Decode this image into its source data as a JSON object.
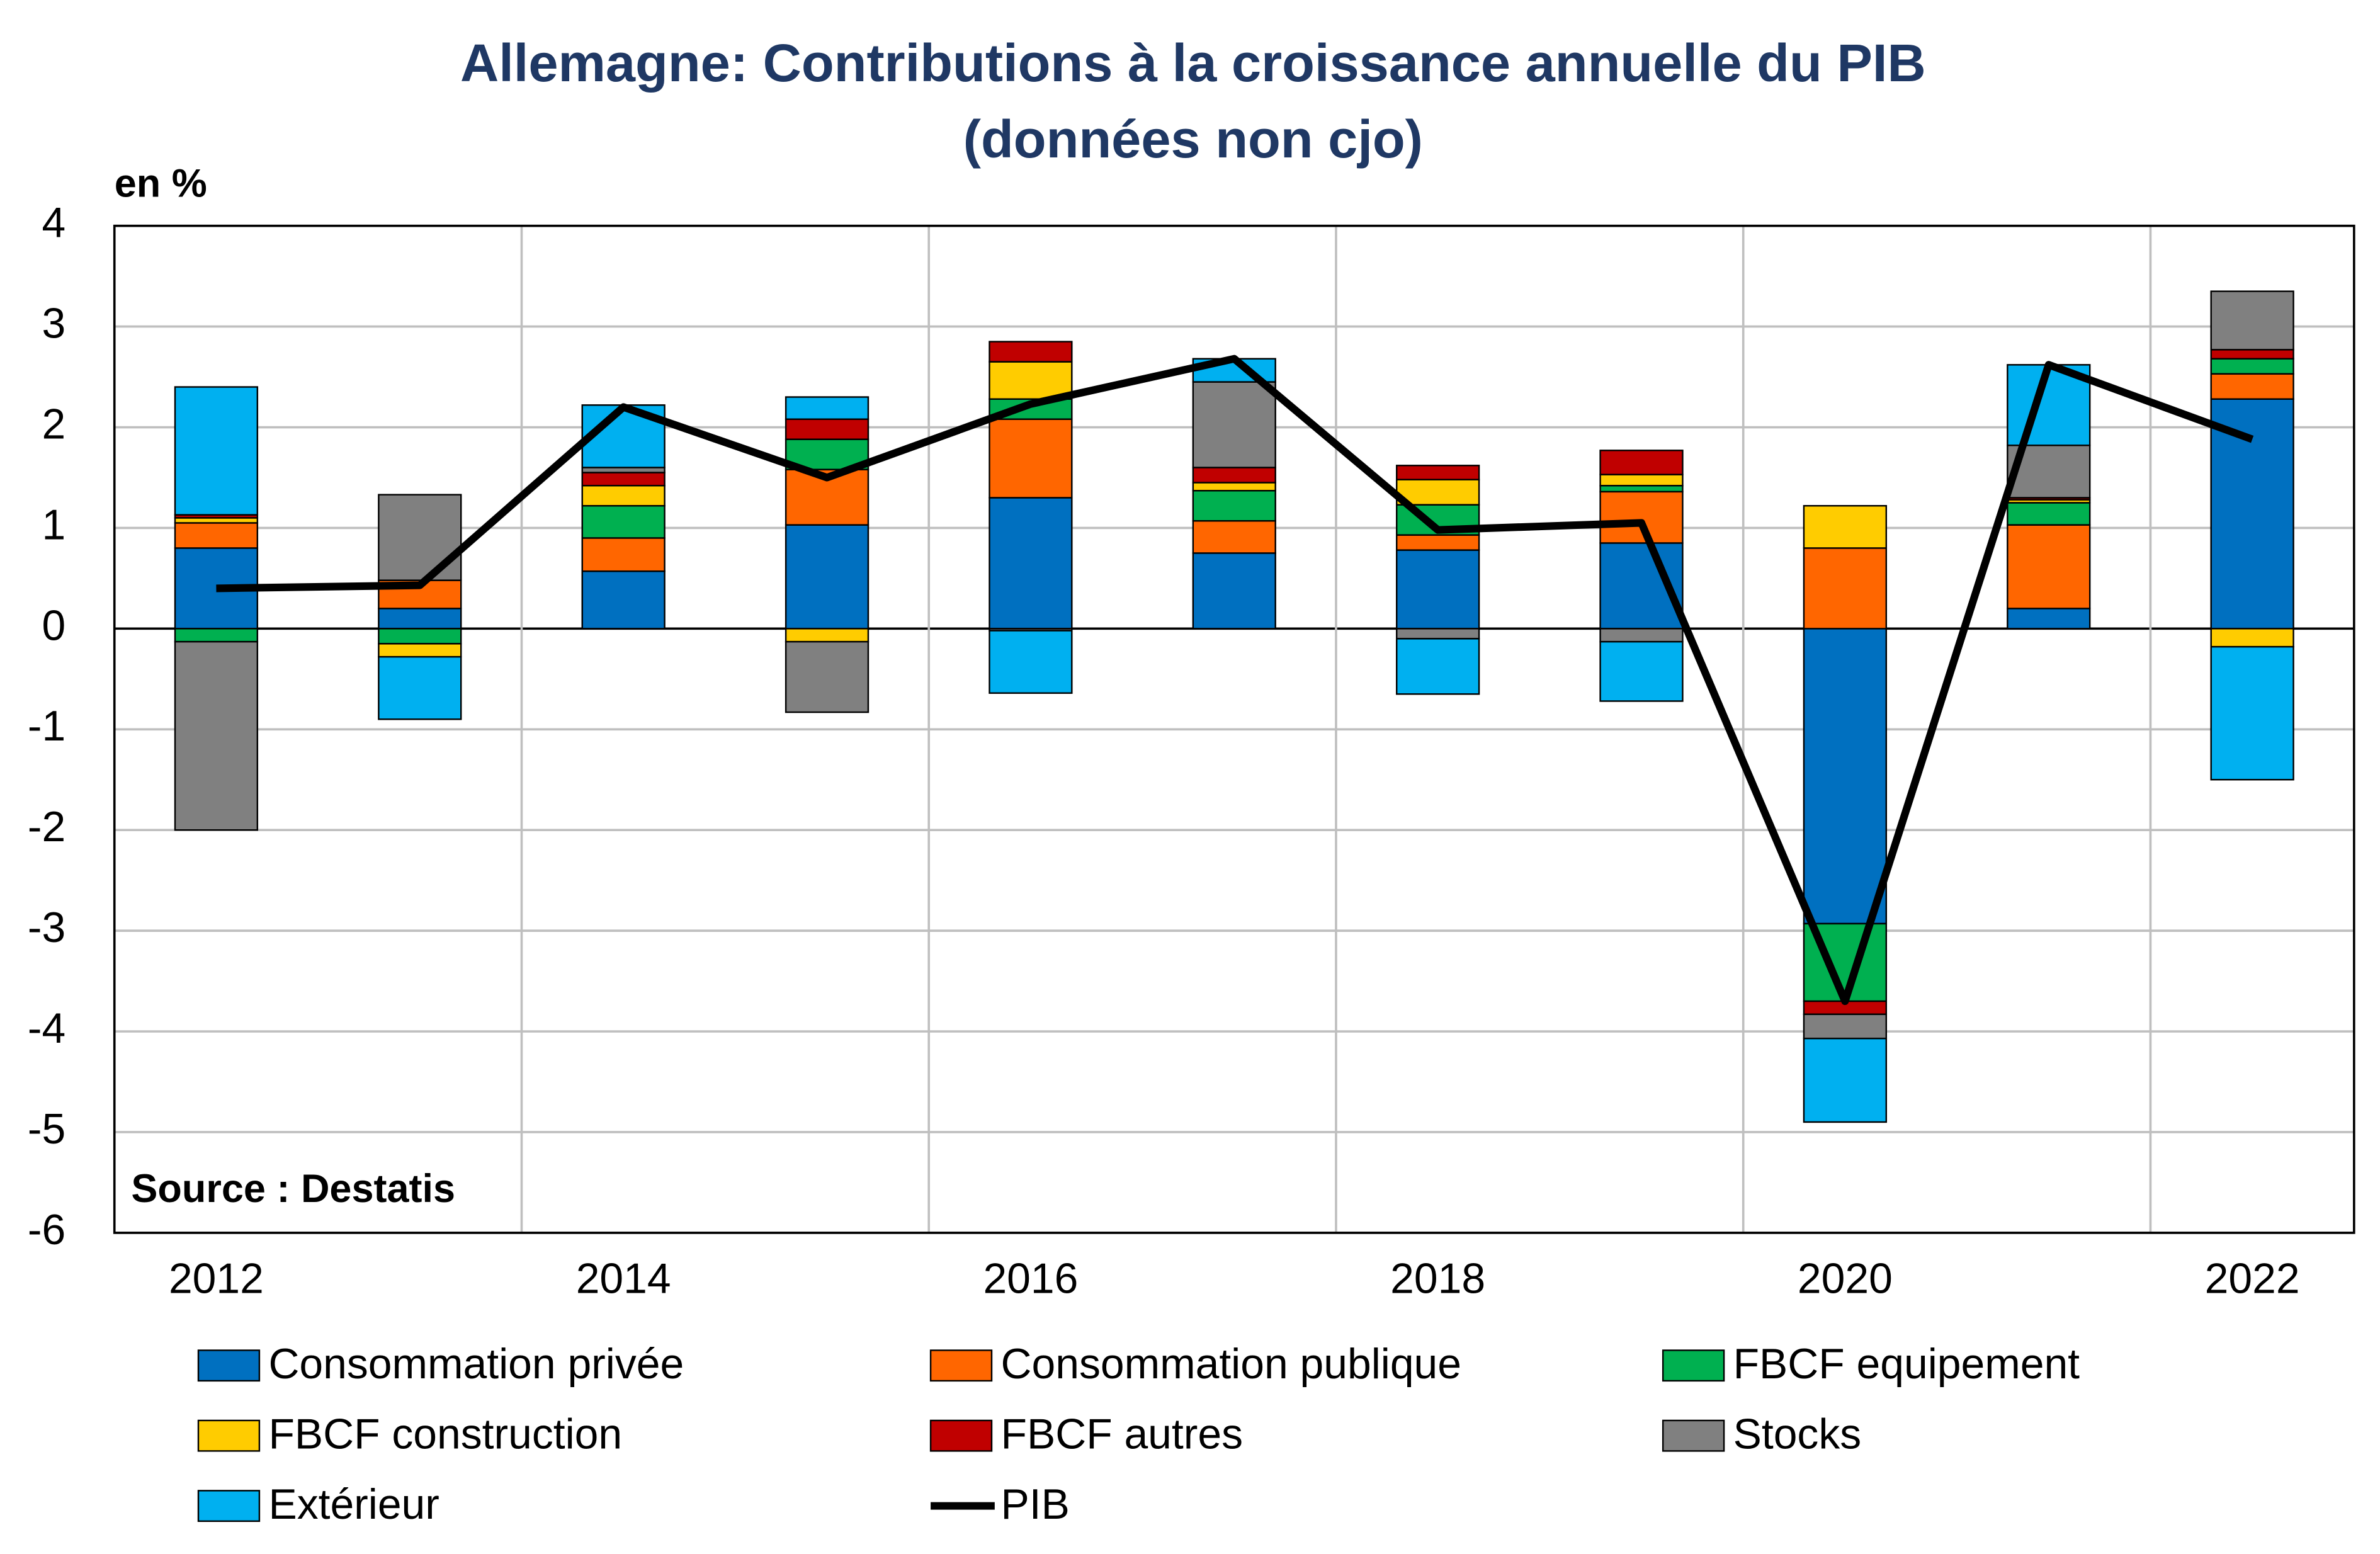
{
  "chart_data": {
    "type": "bar",
    "stacked": true,
    "title": "Allemagne: Contributions à la croissance annuelle du PIB",
    "subtitle": "(données non cjo)",
    "y_label": "en %",
    "annotation": "Source : Destatis",
    "categories": [
      "2012",
      null,
      "2014",
      null,
      "2016",
      null,
      "2018",
      null,
      "2020",
      null,
      "2022"
    ],
    "ylim": [
      -6,
      4
    ],
    "yticks": [
      -6,
      -5,
      -4,
      -3,
      -2,
      -1,
      0,
      1,
      2,
      3,
      4
    ],
    "grid": true,
    "series": [
      {
        "name": "Consommation privée",
        "color": "#0070c0",
        "values": [
          0.8,
          0.2,
          0.57,
          1.03,
          1.3,
          0.75,
          0.78,
          0.85,
          -2.93,
          0.2,
          2.28
        ]
      },
      {
        "name": "Consommation publique",
        "color": "#ff6600",
        "values": [
          0.25,
          0.28,
          0.33,
          0.55,
          0.78,
          0.32,
          0.15,
          0.51,
          0.8,
          0.83,
          0.25
        ]
      },
      {
        "name": "FBCF equipement",
        "color": "#00b050",
        "values": [
          -0.13,
          -0.15,
          0.32,
          0.3,
          0.2,
          0.3,
          0.3,
          0.06,
          -0.77,
          0.22,
          0.15
        ]
      },
      {
        "name": "FBCF construction",
        "color": "#ffcc00",
        "values": [
          0.05,
          -0.13,
          0.2,
          -0.13,
          0.37,
          0.08,
          0.25,
          0.11,
          0.42,
          0.03,
          -0.18
        ]
      },
      {
        "name": "FBCF autres",
        "color": "#c00000",
        "values": [
          0.03,
          0.0,
          0.13,
          0.2,
          0.2,
          0.15,
          0.14,
          0.24,
          -0.13,
          0.02,
          0.09
        ]
      },
      {
        "name": "Stocks",
        "color": "#808080",
        "values": [
          -1.87,
          0.85,
          0.05,
          -0.7,
          -0.02,
          0.85,
          -0.1,
          -0.13,
          -0.24,
          0.52,
          0.58
        ]
      },
      {
        "name": "Extérieur",
        "color": "#00b0f0",
        "values": [
          1.27,
          -0.62,
          0.62,
          0.22,
          -0.62,
          0.23,
          -0.55,
          -0.59,
          -0.83,
          0.8,
          -1.32
        ]
      },
      {
        "name": "PIB",
        "type": "line",
        "color": "#000000",
        "values": [
          0.4,
          0.43,
          2.2,
          1.5,
          2.23,
          2.68,
          0.98,
          1.05,
          -3.7,
          2.62,
          1.88
        ]
      }
    ]
  }
}
